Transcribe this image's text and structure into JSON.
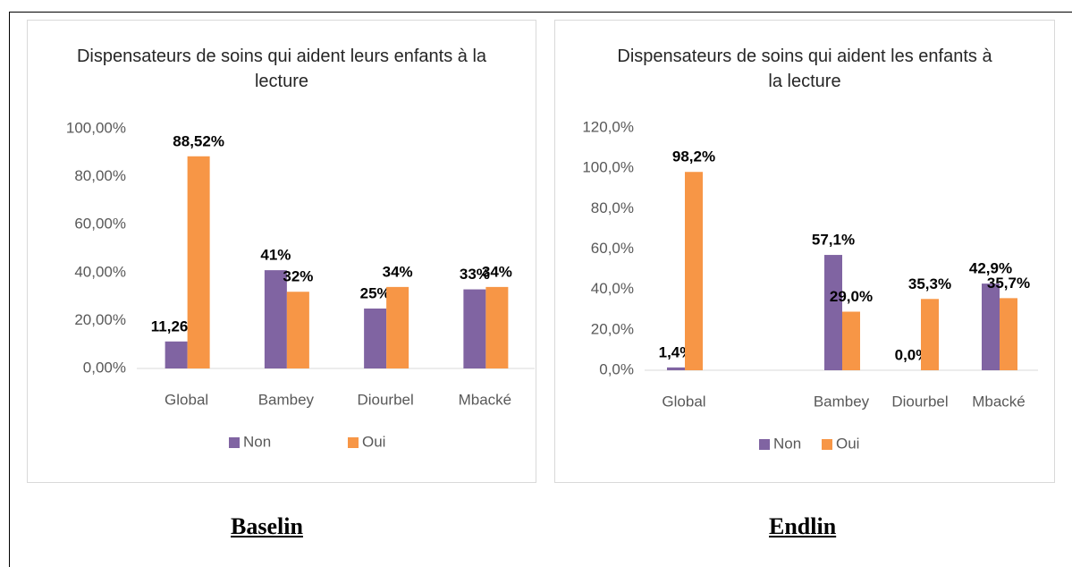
{
  "chart_data": [
    {
      "type": "bar",
      "title": "Dispensateurs de soins qui aident leurs enfants à la lecture",
      "categories": [
        "Global",
        "Bambey",
        "Diourbel",
        "Mbacké"
      ],
      "series": [
        {
          "name": "Non",
          "color": "#8064a2",
          "values": [
            11.26,
            41,
            25,
            33
          ],
          "value_labels": [
            "11,26%",
            "41%",
            "25%",
            "33%"
          ]
        },
        {
          "name": "Oui",
          "color": "#f79646",
          "values": [
            88.52,
            32,
            34,
            34
          ],
          "value_labels": [
            "88,52%",
            "32%",
            "34%",
            "34%"
          ]
        }
      ],
      "ylim": [
        0,
        100
      ],
      "yticks": [
        {
          "value": 0,
          "label": "0,00%"
        },
        {
          "value": 20,
          "label": "20,00%"
        },
        {
          "value": 40,
          "label": "40,00%"
        },
        {
          "value": 60,
          "label": "60,00%"
        },
        {
          "value": 80,
          "label": "80,00%"
        },
        {
          "value": 100,
          "label": "100,00%"
        }
      ],
      "grid": false,
      "legend": "bottom"
    },
    {
      "type": "bar",
      "title": "Dispensateurs de soins qui aident les enfants à la lecture",
      "categories": [
        "Global",
        null,
        "Bambey",
        "Diourbel",
        "Mbacké"
      ],
      "series": [
        {
          "name": "Non",
          "color": "#8064a2",
          "values": [
            1.4,
            null,
            57.1,
            0.0,
            42.9
          ],
          "value_labels": [
            "1,4%",
            null,
            "57,1%",
            "0,0%",
            "42,9%"
          ]
        },
        {
          "name": "Oui",
          "color": "#f79646",
          "values": [
            98.2,
            null,
            29.0,
            35.3,
            35.7
          ],
          "value_labels": [
            "98,2%",
            null,
            "29,0%",
            "35,3%",
            "35,7%"
          ]
        }
      ],
      "ylim": [
        0,
        120
      ],
      "yticks": [
        {
          "value": 0,
          "label": "0,0%"
        },
        {
          "value": 20,
          "label": "20,0%"
        },
        {
          "value": 40,
          "label": "40,0%"
        },
        {
          "value": 60,
          "label": "60,0%"
        },
        {
          "value": 80,
          "label": "80,0%"
        },
        {
          "value": 100,
          "label": "100,0%"
        },
        {
          "value": 120,
          "label": "120,0%"
        }
      ],
      "grid": false,
      "legend": "bottom"
    }
  ],
  "captions": [
    "Baselin",
    "Endlin"
  ]
}
